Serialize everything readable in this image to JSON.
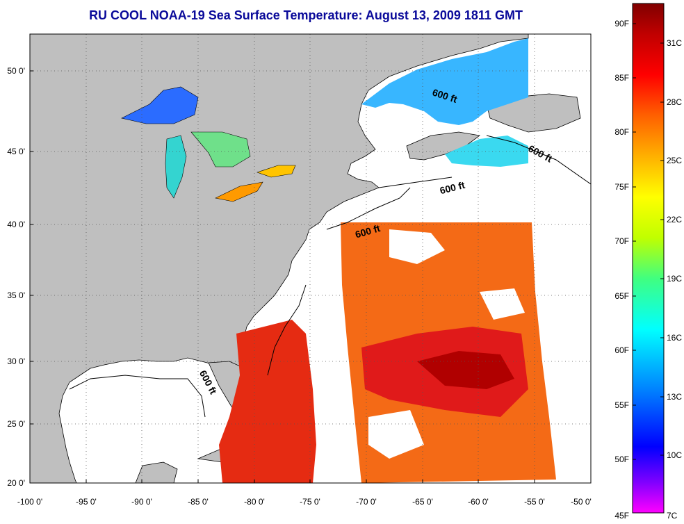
{
  "title": "RU COOL  NOAA-19  Sea Surface Temperature:  August 13, 2009 1811 GMT",
  "map": {
    "lon_range": [
      -100,
      -50
    ],
    "lat_range": [
      20,
      52.5
    ],
    "lon_ticks": [
      "-100 0'",
      "-95 0'",
      "-90 0'",
      "-85 0'",
      "-80 0'",
      "-75 0'",
      "-70 0'",
      "-65 0'",
      "-60 0'",
      "-55 0'",
      "-50 0'"
    ],
    "lat_ticks": [
      "50 0'",
      "45 0'",
      "40 0'",
      "35 0'",
      "30 0'",
      "25 0'",
      "20 0'"
    ],
    "contour_labels": [
      "600 ft",
      "600 ft",
      "600 ft",
      "600 ft",
      "600 ft"
    ],
    "colors": {
      "land": "#bfbfbf",
      "no_data": "#ffffff",
      "grid": "#555555"
    }
  },
  "colorbar": {
    "fahrenheit_ticks": [
      "90F",
      "85F",
      "80F",
      "75F",
      "70F",
      "65F",
      "60F",
      "55F",
      "50F",
      "45F"
    ],
    "celsius_ticks": [
      "31C",
      "28C",
      "25C",
      "22C",
      "19C",
      "16C",
      "13C",
      "10C",
      "7C"
    ],
    "gradient": [
      "#ff00ff",
      "#8000ff",
      "#0000ff",
      "#0080ff",
      "#00ffff",
      "#40ff80",
      "#c0ff00",
      "#ffff00",
      "#ffb000",
      "#ff6000",
      "#ff0000",
      "#c00000",
      "#800000"
    ]
  }
}
